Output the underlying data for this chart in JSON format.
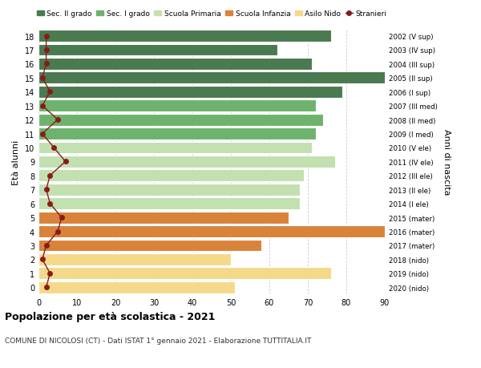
{
  "ages": [
    18,
    17,
    16,
    15,
    14,
    13,
    12,
    11,
    10,
    9,
    8,
    7,
    6,
    5,
    4,
    3,
    2,
    1,
    0
  ],
  "right_labels": [
    "2002 (V sup)",
    "2003 (IV sup)",
    "2004 (III sup)",
    "2005 (II sup)",
    "2006 (I sup)",
    "2007 (III med)",
    "2008 (II med)",
    "2009 (I med)",
    "2010 (V ele)",
    "2011 (IV ele)",
    "2012 (III ele)",
    "2013 (II ele)",
    "2014 (I ele)",
    "2015 (mater)",
    "2016 (mater)",
    "2017 (mater)",
    "2018 (nido)",
    "2019 (nido)",
    "2020 (nido)"
  ],
  "bar_values": [
    76,
    62,
    71,
    93,
    79,
    72,
    74,
    72,
    71,
    77,
    69,
    68,
    68,
    65,
    90,
    58,
    50,
    76,
    51
  ],
  "bar_colors": [
    "#4a7a50",
    "#4a7a50",
    "#4a7a50",
    "#4a7a50",
    "#4a7a50",
    "#6db36d",
    "#6db36d",
    "#6db36d",
    "#c2e0b0",
    "#c2e0b0",
    "#c2e0b0",
    "#c2e0b0",
    "#c2e0b0",
    "#d9823a",
    "#d9823a",
    "#d9823a",
    "#f5d98b",
    "#f5d98b",
    "#f5d98b"
  ],
  "stranieri_values": [
    2,
    2,
    2,
    1,
    3,
    1,
    5,
    1,
    4,
    7,
    3,
    2,
    3,
    6,
    5,
    2,
    1,
    3,
    2
  ],
  "legend_labels": [
    "Sec. II grado",
    "Sec. I grado",
    "Scuola Primaria",
    "Scuola Infanzia",
    "Asilo Nido",
    "Stranieri"
  ],
  "legend_colors": [
    "#4a7a50",
    "#6db36d",
    "#c2e0b0",
    "#d9823a",
    "#f5d98b",
    "#9b1c1c"
  ],
  "ylabel_left": "Età alunni",
  "ylabel_right": "Anni di nascita",
  "title_bold": "Popolazione per età scolastica - 2021",
  "subtitle": "COMUNE DI NICOLOSI (CT) - Dati ISTAT 1° gennaio 2021 - Elaborazione TUTTITALIA.IT",
  "xlim": [
    0,
    90
  ],
  "xticks": [
    0,
    10,
    20,
    30,
    40,
    50,
    60,
    70,
    80,
    90
  ],
  "bg_color": "#ffffff",
  "plot_bg": "#ffffff",
  "bar_edge_color": "white",
  "grid_color": "#cccccc",
  "stranieri_color": "#8b1a1a"
}
